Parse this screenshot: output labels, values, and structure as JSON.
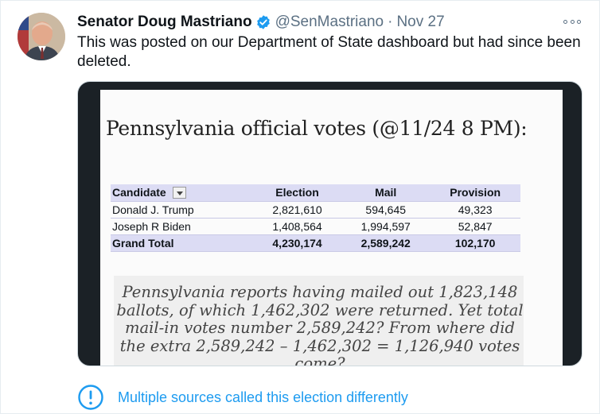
{
  "tweet": {
    "author": {
      "display_name": "Senator Doug Mastriano",
      "verified": true,
      "handle": "@SenMastriano",
      "separator": "·",
      "date": "Nov 27"
    },
    "text": "This was posted on our Department of State dashboard but had since been deleted.",
    "media": {
      "title": "Pennsylvania official votes (@11/24 8 PM):",
      "table": {
        "columns": [
          "Candidate",
          "Election",
          "Mail",
          "Provision"
        ],
        "rows": [
          [
            "Donald J. Trump",
            "2,821,610",
            "594,645",
            "49,323"
          ],
          [
            "Joseph R Biden",
            "1,408,564",
            "1,994,597",
            "52,847"
          ]
        ],
        "total": [
          "Grand Total",
          "4,230,174",
          "2,589,242",
          "102,170"
        ]
      },
      "quote_lines": [
        "Pennsylvania reports having mailed out 1,823,148",
        "ballots, of which 1,462,302 were returned. Yet total",
        "mail-in votes number 2,589,242? From where did",
        "the extra 2,589,242 – 1,462,302 = 1,126,940 votes",
        "come?"
      ]
    },
    "notice": {
      "icon": "exclamation-circle-icon",
      "text": "Multiple sources called this election differently"
    },
    "more_icon": "more-options-icon"
  },
  "colors": {
    "accent": "#1d9bf0",
    "text_primary": "#0f1419",
    "text_secondary": "#5b7083",
    "table_header": "#dcdcf4"
  }
}
